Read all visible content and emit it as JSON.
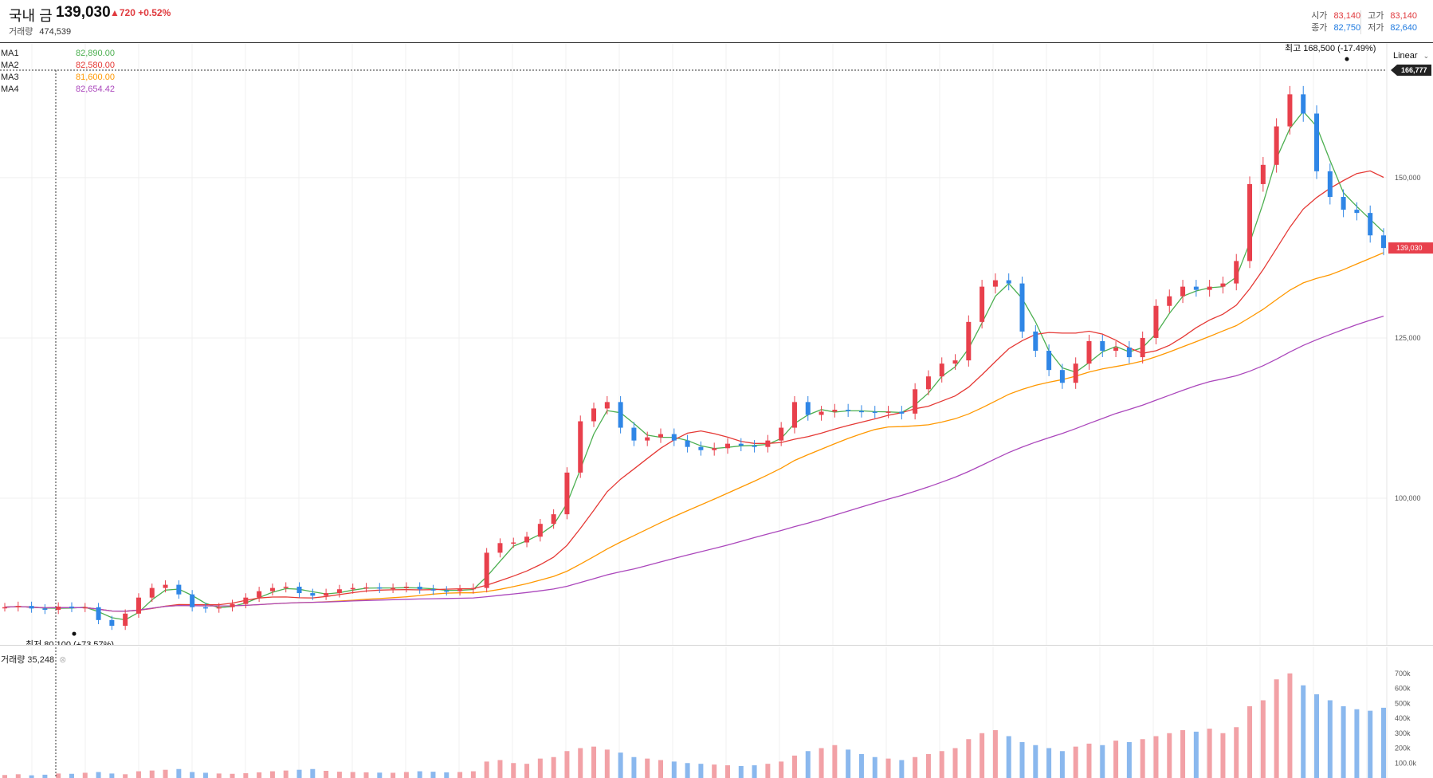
{
  "header": {
    "name": "국내 금",
    "price": "139,030",
    "change": "▲720 +0.52%",
    "volume_label": "거래량",
    "volume_value": "474,539",
    "ohlc": [
      {
        "label": "시가",
        "value": "83,140",
        "color": "red"
      },
      {
        "label": "고가",
        "value": "83,140",
        "color": "red"
      },
      {
        "label": "종가",
        "value": "82,750",
        "color": "blue"
      },
      {
        "label": "저가",
        "value": "82,640",
        "color": "blue"
      }
    ]
  },
  "scale_button": "Linear",
  "ma_legend": [
    {
      "name": "MA1",
      "value": "82,890.00",
      "color": "#4caf50"
    },
    {
      "name": "MA2",
      "value": "82,580.00",
      "color": "#e53935"
    },
    {
      "name": "MA3",
      "value": "81,600.00",
      "color": "#ff9800"
    },
    {
      "name": "MA4",
      "value": "82,654.42",
      "color": "#ab47bc"
    }
  ],
  "volume_pane": {
    "title": "거래량 35,248"
  },
  "chart_data": {
    "type": "candlestick",
    "y_axis": {
      "ticks": [
        "100,000",
        "125,000",
        "150,000"
      ],
      "tick_values": [
        100000,
        125000,
        150000
      ],
      "range": [
        77000,
        171000
      ]
    },
    "crosshair_label": "166,777",
    "last_price_label": "139,030",
    "last_price": 139030,
    "crosshair_price": 166777,
    "annotations": {
      "high": {
        "text": "최고 168,500 (-17.49%)",
        "value": 168500
      },
      "low": {
        "text": "최저 80,100 (+73.57%)",
        "value": 80100
      }
    },
    "price_series": [
      83000,
      83200,
      82800,
      82600,
      83100,
      82900,
      83000,
      81000,
      80100,
      82000,
      84500,
      86000,
      86500,
      85000,
      83000,
      82800,
      83000,
      83500,
      84500,
      85500,
      86000,
      86200,
      85200,
      84800,
      85200,
      85800,
      86000,
      86100,
      85900,
      86000,
      86200,
      85800,
      85600,
      85500,
      85800,
      86000,
      91500,
      93000,
      93100,
      94000,
      96000,
      97500,
      104000,
      112000,
      114000,
      115000,
      111000,
      109000,
      109500,
      110000,
      109000,
      108000,
      107500,
      107800,
      108500,
      108200,
      108000,
      109000,
      111000,
      115000,
      113000,
      113500,
      113800,
      113600,
      113500,
      113400,
      113500,
      113200,
      117000,
      119000,
      121000,
      121500,
      127500,
      133000,
      134000,
      133500,
      126000,
      123000,
      120000,
      118000,
      121000,
      124500,
      123000,
      123500,
      122000,
      125000,
      130000,
      131500,
      133000,
      132500,
      133000,
      133500,
      137000,
      149000,
      152000,
      158000,
      163000,
      160000,
      151000,
      147000,
      145000,
      144500,
      141000,
      139030
    ],
    "volume_series": [
      20,
      25,
      18,
      22,
      30,
      28,
      35,
      40,
      30,
      25,
      45,
      50,
      55,
      60,
      40,
      35,
      30,
      28,
      32,
      38,
      45,
      50,
      55,
      60,
      48,
      42,
      40,
      38,
      36,
      35,
      40,
      45,
      42,
      38,
      40,
      45,
      110,
      120,
      100,
      95,
      130,
      140,
      180,
      200,
      210,
      190,
      170,
      140,
      130,
      120,
      110,
      100,
      95,
      90,
      85,
      80,
      85,
      95,
      110,
      150,
      180,
      200,
      220,
      190,
      160,
      140,
      130,
      120,
      140,
      160,
      180,
      200,
      260,
      300,
      320,
      280,
      240,
      220,
      200,
      180,
      210,
      230,
      220,
      250,
      240,
      260,
      280,
      300,
      320,
      310,
      330,
      300,
      340,
      480,
      520,
      660,
      700,
      620,
      560,
      520,
      480,
      460,
      450,
      470
    ],
    "volume_ticks": [
      "700k",
      "600k",
      "500k",
      "400k",
      "300k",
      "200k",
      "100.0k"
    ],
    "volume_tick_values": [
      700,
      600,
      500,
      400,
      300,
      200,
      100
    ],
    "moving_averages": [
      "MA1",
      "MA2",
      "MA3",
      "MA4"
    ]
  }
}
